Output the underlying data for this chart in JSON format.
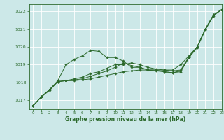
{
  "xlabel": "Graphe pression niveau de la mer (hPa)",
  "background_color": "#cce8e8",
  "grid_color": "#ffffff",
  "line_color": "#2d6a2d",
  "ylim": [
    1016.5,
    1022.4
  ],
  "xlim": [
    -0.5,
    23
  ],
  "yticks": [
    1017,
    1018,
    1019,
    1020,
    1021,
    1022
  ],
  "xticks": [
    0,
    1,
    2,
    3,
    4,
    5,
    6,
    7,
    8,
    9,
    10,
    11,
    12,
    13,
    14,
    15,
    16,
    17,
    18,
    19,
    20,
    21,
    22,
    23
  ],
  "series": [
    [
      1016.7,
      1017.2,
      1017.6,
      1018.1,
      1019.0,
      1019.3,
      1019.5,
      1019.8,
      1019.75,
      1019.4,
      1019.4,
      1019.2,
      1018.85,
      1018.85,
      1018.7,
      1018.7,
      1018.7,
      1018.7,
      1019.0,
      1019.5,
      1020.0,
      1021.0,
      1021.8,
      1022.1
    ],
    [
      1016.7,
      1017.2,
      1017.6,
      1018.05,
      1018.1,
      1018.2,
      1018.3,
      1018.5,
      1018.6,
      1018.8,
      1019.0,
      1019.0,
      1019.1,
      1019.0,
      1018.85,
      1018.75,
      1018.7,
      1018.65,
      1018.7,
      1019.45,
      1020.0,
      1021.0,
      1021.8,
      1022.1
    ],
    [
      1016.7,
      1017.2,
      1017.6,
      1018.05,
      1018.1,
      1018.15,
      1018.2,
      1018.35,
      1018.5,
      1018.65,
      1018.85,
      1019.1,
      1018.95,
      1018.85,
      1018.7,
      1018.7,
      1018.6,
      1018.55,
      1018.65,
      1019.4,
      1020.0,
      1021.0,
      1021.8,
      1022.1
    ],
    [
      1016.7,
      1017.2,
      1017.55,
      1018.05,
      1018.1,
      1018.1,
      1018.15,
      1018.2,
      1018.3,
      1018.4,
      1018.5,
      1018.6,
      1018.65,
      1018.7,
      1018.7,
      1018.65,
      1018.6,
      1018.55,
      1018.6,
      1019.4,
      1019.95,
      1020.95,
      1021.75,
      1022.1
    ]
  ]
}
